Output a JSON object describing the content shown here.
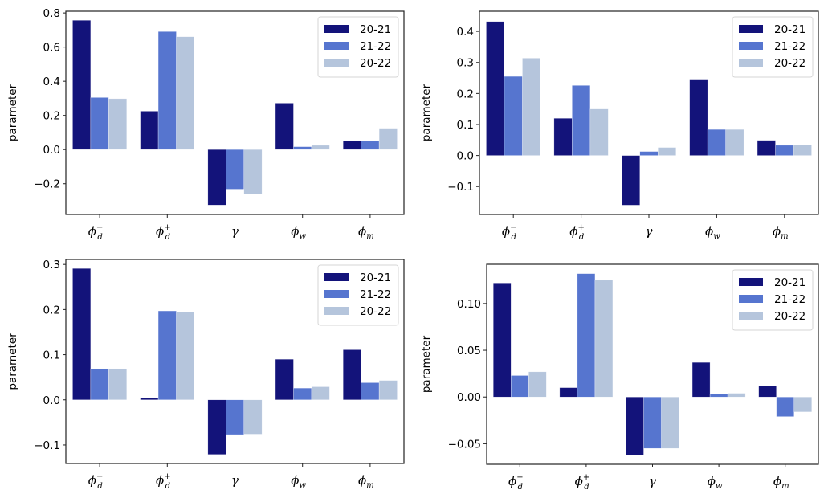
{
  "chart_data": [
    {
      "type": "bar",
      "panel": "top-left",
      "categories": [
        "φ_d^-",
        "φ_d^+",
        "γ",
        "φ_w",
        "φ_m"
      ],
      "category_labels": [
        {
          "base": "ϕ",
          "sub": "d",
          "sup": "−"
        },
        {
          "base": "ϕ",
          "sub": "d",
          "sup": "+"
        },
        {
          "base": "γ",
          "sub": "",
          "sup": ""
        },
        {
          "base": "ϕ",
          "sub": "w",
          "sup": ""
        },
        {
          "base": "ϕ",
          "sub": "m",
          "sup": ""
        }
      ],
      "series": [
        {
          "name": "20-21",
          "values": [
            0.757,
            0.225,
            -0.325,
            0.272,
            0.052
          ]
        },
        {
          "name": "21-22",
          "values": [
            0.305,
            0.691,
            -0.232,
            0.017,
            0.052
          ]
        },
        {
          "name": "20-22",
          "values": [
            0.298,
            0.661,
            -0.262,
            0.025,
            0.125
          ]
        }
      ],
      "title": "",
      "xlabel": "",
      "ylabel": "parameter",
      "ylim": [
        -0.38,
        0.81
      ],
      "yticks": [
        -0.2,
        0.0,
        0.2,
        0.4,
        0.6,
        0.8
      ],
      "ytick_labels": [
        "−0.2",
        "0.0",
        "0.2",
        "0.4",
        "0.6",
        "0.8"
      ],
      "grid": false,
      "legend": "top-right"
    },
    {
      "type": "bar",
      "panel": "top-right",
      "categories": [
        "φ_d^-",
        "φ_d^+",
        "γ",
        "φ_w",
        "φ_m"
      ],
      "category_labels": [
        {
          "base": "ϕ",
          "sub": "d",
          "sup": "−"
        },
        {
          "base": "ϕ",
          "sub": "d",
          "sup": "+"
        },
        {
          "base": "γ",
          "sub": "",
          "sup": ""
        },
        {
          "base": "ϕ",
          "sub": "w",
          "sup": ""
        },
        {
          "base": "ϕ",
          "sub": "m",
          "sup": ""
        }
      ],
      "series": [
        {
          "name": "20-21",
          "values": [
            0.432,
            0.12,
            -0.16,
            0.246,
            0.049
          ]
        },
        {
          "name": "21-22",
          "values": [
            0.255,
            0.226,
            0.013,
            0.084,
            0.033
          ]
        },
        {
          "name": "20-22",
          "values": [
            0.314,
            0.15,
            0.026,
            0.084,
            0.035
          ]
        }
      ],
      "title": "",
      "xlabel": "",
      "ylabel": "parameter",
      "ylim": [
        -0.19,
        0.465
      ],
      "yticks": [
        -0.1,
        0.0,
        0.1,
        0.2,
        0.3,
        0.4
      ],
      "ytick_labels": [
        "−0.1",
        "0.0",
        "0.1",
        "0.2",
        "0.3",
        "0.4"
      ],
      "grid": false,
      "legend": "top-right"
    },
    {
      "type": "bar",
      "panel": "bottom-left",
      "categories": [
        "φ_d^-",
        "φ_d^+",
        "γ",
        "φ_w",
        "φ_m"
      ],
      "category_labels": [
        {
          "base": "ϕ",
          "sub": "d",
          "sup": "−"
        },
        {
          "base": "ϕ",
          "sub": "d",
          "sup": "+"
        },
        {
          "base": "γ",
          "sub": "",
          "sup": ""
        },
        {
          "base": "ϕ",
          "sub": "w",
          "sup": ""
        },
        {
          "base": "ϕ",
          "sub": "m",
          "sup": ""
        }
      ],
      "series": [
        {
          "name": "20-21",
          "values": [
            0.291,
            0.004,
            -0.121,
            0.09,
            0.111
          ]
        },
        {
          "name": "21-22",
          "values": [
            0.069,
            0.197,
            -0.077,
            0.026,
            0.038
          ]
        },
        {
          "name": "20-22",
          "values": [
            0.069,
            0.195,
            -0.076,
            0.029,
            0.043
          ]
        }
      ],
      "title": "",
      "xlabel": "",
      "ylabel": "parameter",
      "ylim": [
        -0.141,
        0.311
      ],
      "yticks": [
        -0.1,
        0.0,
        0.1,
        0.2,
        0.3
      ],
      "ytick_labels": [
        "−0.1",
        "0.0",
        "0.1",
        "0.2",
        "0.3"
      ],
      "grid": false,
      "legend": "top-right"
    },
    {
      "type": "bar",
      "panel": "bottom-right",
      "categories": [
        "φ_d^-",
        "φ_d^+",
        "γ",
        "φ_w",
        "φ_m"
      ],
      "category_labels": [
        {
          "base": "ϕ",
          "sub": "d",
          "sup": "−"
        },
        {
          "base": "ϕ",
          "sub": "d",
          "sup": "+"
        },
        {
          "base": "γ",
          "sub": "",
          "sup": ""
        },
        {
          "base": "ϕ",
          "sub": "w",
          "sup": ""
        },
        {
          "base": "ϕ",
          "sub": "m",
          "sup": ""
        }
      ],
      "series": [
        {
          "name": "20-21",
          "values": [
            0.122,
            0.01,
            -0.062,
            0.037,
            0.012
          ]
        },
        {
          "name": "21-22",
          "values": [
            0.023,
            0.132,
            -0.055,
            0.003,
            -0.021
          ]
        },
        {
          "name": "20-22",
          "values": [
            0.027,
            0.125,
            -0.055,
            0.004,
            -0.016
          ]
        }
      ],
      "title": "",
      "xlabel": "",
      "ylabel": "parameter",
      "ylim": [
        -0.072,
        0.142
      ],
      "yticks": [
        -0.05,
        0.0,
        0.05,
        0.1
      ],
      "ytick_labels": [
        "−0.05",
        "0.00",
        "0.05",
        "0.10"
      ],
      "grid": false,
      "legend": "top-right"
    }
  ],
  "legend": {
    "entries": [
      {
        "label": "20-21",
        "color": "#13137a"
      },
      {
        "label": "21-22",
        "color": "#5675cf"
      },
      {
        "label": "20-22",
        "color": "#b5c5dc"
      }
    ]
  },
  "colors": {
    "series": [
      "#13137a",
      "#5675cf",
      "#b5c5dc"
    ],
    "axis": "#222222",
    "legend_border": "#d6d6d6"
  }
}
